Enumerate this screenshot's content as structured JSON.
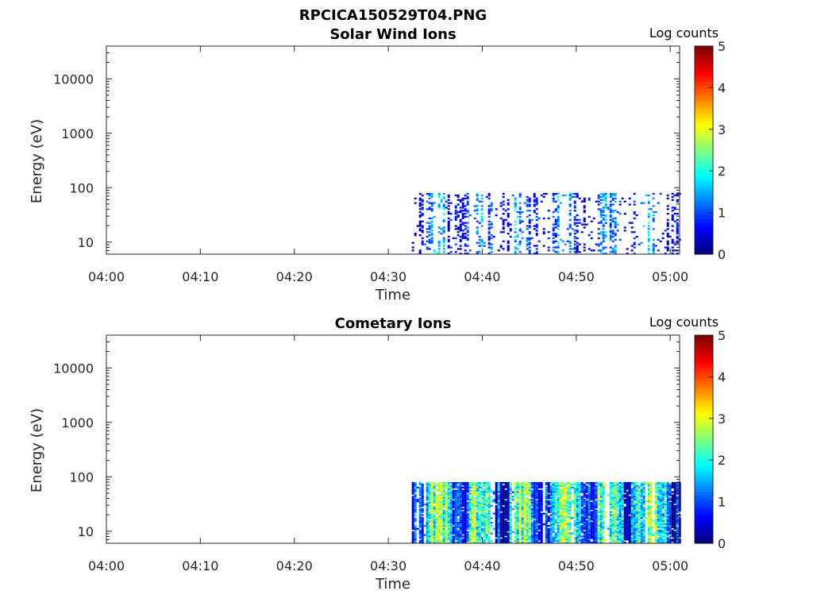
{
  "figure": {
    "title": "RPCICA150529T04.PNG"
  },
  "chart_data": [
    {
      "type": "heatmap",
      "title": "Solar Wind Ions",
      "xlabel": "Time",
      "ylabel": "Energy (eV)",
      "x_ticks": [
        "04:00",
        "04:10",
        "04:20",
        "04:30",
        "04:40",
        "04:50",
        "05:00"
      ],
      "xlim": [
        "04:00",
        "05:01"
      ],
      "y_scale": "log",
      "y_ticks": [
        10,
        100,
        1000,
        10000
      ],
      "ylim": [
        6,
        40000
      ],
      "data_extent": {
        "time_start": "04:32.5",
        "time_end": "05:01",
        "energy_min": 6,
        "energy_max": 80
      },
      "colorbar": {
        "label": "Log counts",
        "range": [
          0,
          5
        ],
        "ticks": [
          0,
          1,
          2,
          3,
          4,
          5
        ],
        "colormap": "jet"
      },
      "intensity": "sparse, mostly 0.3-1.5 log counts",
      "density": 0.45,
      "mean_level": 0.9,
      "seed": 17
    },
    {
      "type": "heatmap",
      "title": "Cometary Ions",
      "xlabel": "Time",
      "ylabel": "Energy (eV)",
      "x_ticks": [
        "04:00",
        "04:10",
        "04:20",
        "04:30",
        "04:40",
        "04:50",
        "05:00"
      ],
      "xlim": [
        "04:00",
        "05:01"
      ],
      "y_scale": "log",
      "y_ticks": [
        10,
        100,
        1000,
        10000
      ],
      "ylim": [
        6,
        40000
      ],
      "data_extent": {
        "time_start": "04:32.5",
        "time_end": "05:01",
        "energy_min": 6,
        "energy_max": 80
      },
      "colorbar": {
        "label": "Log counts",
        "range": [
          0,
          5
        ],
        "ticks": [
          0,
          1,
          2,
          3,
          4,
          5
        ],
        "colormap": "jet"
      },
      "intensity": "dense, mostly 1-2.8 log counts",
      "density": 0.92,
      "mean_level": 1.7,
      "seed": 42
    }
  ]
}
